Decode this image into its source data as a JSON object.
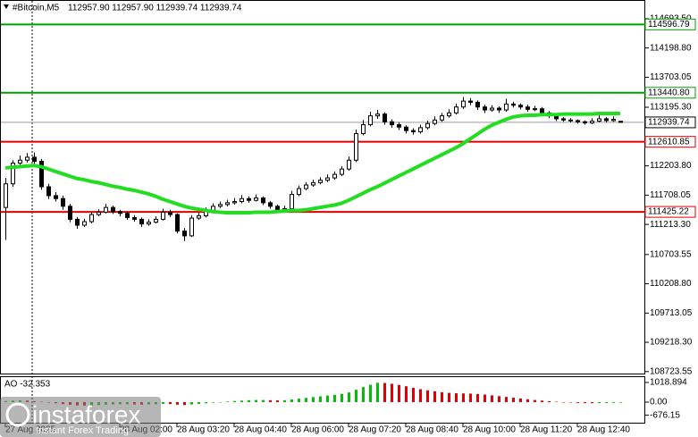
{
  "chart_data": {
    "type": "candlestick",
    "header": {
      "symbol": "#Bitcoin,M5",
      "ohlc_text": "112957.90 112957.90 112939.74 112939.74"
    },
    "ylim": [
      108690,
      115010
    ],
    "yticks": [
      {
        "value": 114693.5,
        "label": "114693.50"
      },
      {
        "value": 114198.8,
        "label": "114198.80"
      },
      113703.05,
      {
        "value": 113195.3,
        "label": "113195.30"
      },
      {
        "value": 112203.8,
        "label": "112203.80"
      },
      111708.05,
      {
        "value": 111213.3,
        "label": "111213.30"
      },
      110703.55,
      {
        "value": 110208.8,
        "label": "110208.80"
      },
      109713.05,
      {
        "value": 109218.3,
        "label": "109218.30"
      },
      108723.55
    ],
    "xlim": [
      -0.75,
      89.5
    ],
    "xticks": [
      {
        "value": 0,
        "label": "27 Aug 2025"
      },
      {
        "value": 16,
        "label": "28 Aug 02:00"
      },
      {
        "value": 24,
        "label": "28 Aug 03:20"
      },
      {
        "value": 32,
        "label": "28 Aug 04:40"
      },
      {
        "value": 40,
        "label": "28 Aug 06:00"
      },
      {
        "value": 48,
        "label": "28 Aug 07:20"
      },
      {
        "value": 56,
        "label": "28 Aug 08:40"
      },
      {
        "value": 64,
        "label": "28 Aug 10:00"
      },
      {
        "value": 72,
        "label": "28 Aug 11:20"
      },
      {
        "value": 80,
        "label": "28 Aug 12:40"
      }
    ],
    "up_color": "#ffffff",
    "down_color": "#000000",
    "ohlc": [
      [
        111500,
        112000,
        110950,
        111900
      ],
      [
        111900,
        112300,
        111850,
        112250
      ],
      [
        112250,
        112380,
        112200,
        112300
      ],
      [
        112300,
        112420,
        112260,
        112350
      ],
      [
        112350,
        112430,
        112230,
        112280
      ],
      [
        112280,
        112320,
        111800,
        111850
      ],
      [
        111850,
        111900,
        111640,
        111700
      ],
      [
        111700,
        111760,
        111600,
        111650
      ],
      [
        111650,
        111700,
        111460,
        111520
      ],
      [
        111520,
        111560,
        111250,
        111300
      ],
      [
        111300,
        111340,
        111140,
        111200
      ],
      [
        111200,
        111310,
        111170,
        111260
      ],
      [
        111260,
        111420,
        111230,
        111380
      ],
      [
        111380,
        111470,
        111350,
        111420
      ],
      [
        111420,
        111560,
        111400,
        111500
      ],
      [
        111500,
        111530,
        111390,
        111430
      ],
      [
        111430,
        111460,
        111350,
        111400
      ],
      [
        111400,
        111430,
        111290,
        111330
      ],
      [
        111330,
        111370,
        111260,
        111300
      ],
      [
        111300,
        111330,
        111170,
        111220
      ],
      [
        111220,
        111300,
        111190,
        111250
      ],
      [
        111250,
        111350,
        111230,
        111300
      ],
      [
        111300,
        111480,
        111280,
        111420
      ],
      [
        111420,
        111460,
        111340,
        111380
      ],
      [
        111380,
        111400,
        111060,
        111100
      ],
      [
        111100,
        111150,
        110930,
        111020
      ],
      [
        111020,
        111370,
        111000,
        111320
      ],
      [
        111320,
        111410,
        111290,
        111360
      ],
      [
        111360,
        111500,
        111330,
        111450
      ],
      [
        111450,
        111570,
        111420,
        111520
      ],
      [
        111520,
        111600,
        111490,
        111550
      ],
      [
        111550,
        111630,
        111520,
        111580
      ],
      [
        111580,
        111660,
        111550,
        111600
      ],
      [
        111600,
        111710,
        111570,
        111650
      ],
      [
        111650,
        111690,
        111580,
        111620
      ],
      [
        111620,
        111720,
        111600,
        111660
      ],
      [
        111660,
        111690,
        111540,
        111580
      ],
      [
        111580,
        111610,
        111480,
        111520
      ],
      [
        111520,
        111550,
        111420,
        111460
      ],
      [
        111460,
        111530,
        111430,
        111480
      ],
      [
        111480,
        111780,
        111450,
        111720
      ],
      [
        111720,
        111870,
        111690,
        111820
      ],
      [
        111820,
        111930,
        111790,
        111880
      ],
      [
        111880,
        111970,
        111850,
        111920
      ],
      [
        111920,
        112010,
        111890,
        111960
      ],
      [
        111960,
        112060,
        111930,
        112000
      ],
      [
        112000,
        112110,
        111970,
        112060
      ],
      [
        112060,
        112200,
        112030,
        112150
      ],
      [
        112150,
        112360,
        112120,
        112300
      ],
      [
        112300,
        112820,
        112270,
        112750
      ],
      [
        112750,
        112980,
        112720,
        112900
      ],
      [
        112900,
        113120,
        112870,
        113050
      ],
      [
        113050,
        113150,
        113000,
        113080
      ],
      [
        113080,
        113110,
        112900,
        112950
      ],
      [
        112950,
        112990,
        112850,
        112900
      ],
      [
        112900,
        112940,
        112810,
        112860
      ],
      [
        112860,
        112890,
        112750,
        112800
      ],
      [
        112800,
        112840,
        112730,
        112780
      ],
      [
        112780,
        112900,
        112750,
        112850
      ],
      [
        112850,
        112970,
        112820,
        112920
      ],
      [
        112920,
        113040,
        112890,
        112980
      ],
      [
        112980,
        113100,
        112950,
        113050
      ],
      [
        113050,
        113160,
        113020,
        113100
      ],
      [
        113100,
        113260,
        113070,
        113200
      ],
      [
        113200,
        113370,
        113170,
        113300
      ],
      [
        113300,
        113350,
        113230,
        113280
      ],
      [
        113280,
        113310,
        113150,
        113200
      ],
      [
        113200,
        113240,
        113100,
        113150
      ],
      [
        113150,
        113230,
        113120,
        113180
      ],
      [
        113180,
        113210,
        113100,
        113150
      ],
      [
        113150,
        113340,
        113120,
        113250
      ],
      [
        113250,
        113290,
        113190,
        113230
      ],
      [
        113230,
        113260,
        113160,
        113200
      ],
      [
        113200,
        113240,
        113120,
        113160
      ],
      [
        113160,
        113220,
        113130,
        113170
      ],
      [
        113170,
        113200,
        113060,
        113100
      ],
      [
        113100,
        113130,
        113010,
        113050
      ],
      [
        113050,
        113080,
        112960,
        113000
      ],
      [
        113000,
        113030,
        112950,
        112980
      ],
      [
        112980,
        113010,
        112940,
        112970
      ],
      [
        112970,
        112990,
        112920,
        112950
      ],
      [
        112950,
        112970,
        112900,
        112930
      ],
      [
        112930,
        113010,
        112910,
        112960
      ],
      [
        112960,
        113060,
        112940,
        113000
      ],
      [
        113000,
        113030,
        112940,
        112970
      ],
      [
        112970,
        113040,
        112950,
        112990
      ],
      [
        112957.9,
        112957.9,
        112939.74,
        112939.74
      ]
    ],
    "ma": {
      "color": "#22dd22",
      "values": [
        112170,
        112180,
        112190,
        112200,
        112210,
        112190,
        112150,
        112110,
        112070,
        112030,
        111990,
        111970,
        111940,
        111920,
        111890,
        111860,
        111840,
        111810,
        111790,
        111760,
        111730,
        111690,
        111640,
        111600,
        111560,
        111520,
        111490,
        111470,
        111450,
        111430,
        111420,
        111410,
        111410,
        111410,
        111410,
        111420,
        111420,
        111420,
        111430,
        111440,
        111450,
        111450,
        111460,
        111480,
        111500,
        111520,
        111540,
        111570,
        111620,
        111680,
        111740,
        111800,
        111850,
        111910,
        111970,
        112030,
        112090,
        112150,
        112210,
        112270,
        112330,
        112390,
        112450,
        112510,
        112580,
        112660,
        112740,
        112820,
        112890,
        112940,
        112990,
        113030,
        113050,
        113060,
        113060,
        113070,
        113070,
        113070,
        113080,
        113080,
        113080,
        113080,
        113080,
        113090,
        113090,
        113090,
        113090
      ]
    },
    "levels": [
      {
        "value": 114596.79,
        "color": "#00a000"
      },
      {
        "value": 113440.8,
        "label": "113440.80",
        "color": "#00a000"
      },
      {
        "value": 112610.85,
        "color": "#e00000"
      },
      {
        "value": 111425.22,
        "color": "#e00000"
      }
    ],
    "current_price": {
      "value": 112939.74,
      "color": "#9a9a9a"
    },
    "ao": {
      "label": "AO -32.353",
      "ylim": [
        -1110,
        1340
      ],
      "yticks": [
        1018.894,
        {
          "value": 0,
          "label": "0.00"
        },
        {
          "value": -676.15,
          "label": "-676.15"
        }
      ],
      "up_color": "#00c000",
      "down_color": "#e00000",
      "values": [
        60,
        80,
        90,
        80,
        50,
        20,
        -20,
        -60,
        -100,
        -140,
        -170,
        -180,
        -170,
        -150,
        -130,
        -120,
        -110,
        -110,
        -120,
        -130,
        -120,
        -110,
        -90,
        -100,
        -130,
        -150,
        -120,
        -90,
        -60,
        -30,
        0,
        30,
        60,
        80,
        100,
        110,
        110,
        100,
        90,
        100,
        140,
        180,
        220,
        260,
        300,
        340,
        380,
        430,
        500,
        640,
        780,
        900,
        1000,
        990,
        950,
        890,
        820,
        740,
        670,
        610,
        560,
        510,
        480,
        460,
        450,
        440,
        420,
        390,
        350,
        310,
        270,
        230,
        190,
        150,
        110,
        80,
        50,
        20,
        0,
        -20,
        -40,
        -50,
        -55,
        -50,
        -45,
        -40,
        -32.353
      ]
    },
    "watermark": {
      "brand": "instaforex",
      "tagline": "Instant Forex Trading"
    }
  }
}
